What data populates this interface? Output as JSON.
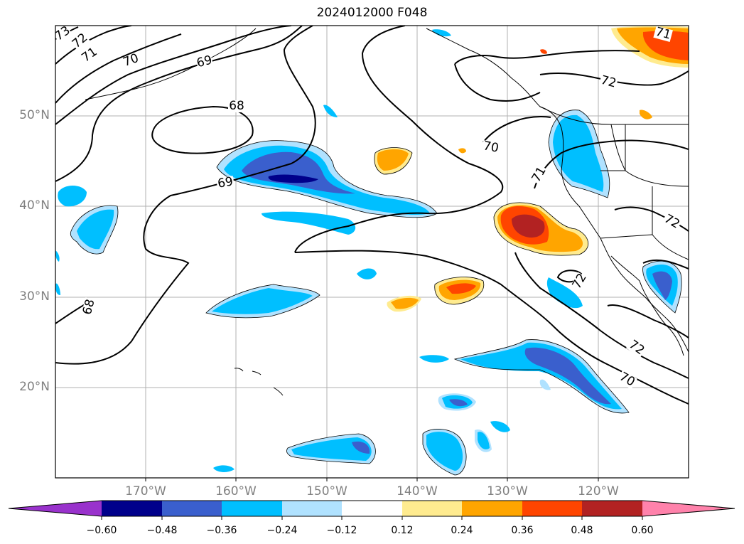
{
  "title": "2024012000 F048",
  "map": {
    "lat_labels": [
      "50°N",
      "40°N",
      "30°N",
      "20°N"
    ],
    "lon_labels": [
      "170°W",
      "160°W",
      "150°W",
      "140°W",
      "130°W",
      "120°W"
    ],
    "contour_labels": [
      "73",
      "72",
      "71",
      "70",
      "69",
      "68",
      "69",
      "68",
      "70",
      "71",
      "72",
      "72",
      "72",
      "70",
      "71"
    ],
    "colors": {
      "neg_060": "#9932cc",
      "neg_048": "#00008b",
      "neg_036": "#3a5fcd",
      "neg_024": "#00bfff",
      "neg_012": "#b0e2ff",
      "pos_012": "#ffeb8f",
      "pos_024": "#ffa500",
      "pos_036": "#ff4500",
      "pos_048": "#b22222",
      "pos_060": "#ff82ab"
    }
  },
  "colorbar": {
    "tick_labels": [
      "−0.60",
      "−0.48",
      "−0.36",
      "−0.24",
      "−0.12",
      "0.12",
      "0.24",
      "0.36",
      "0.48",
      "0.60"
    ]
  }
}
